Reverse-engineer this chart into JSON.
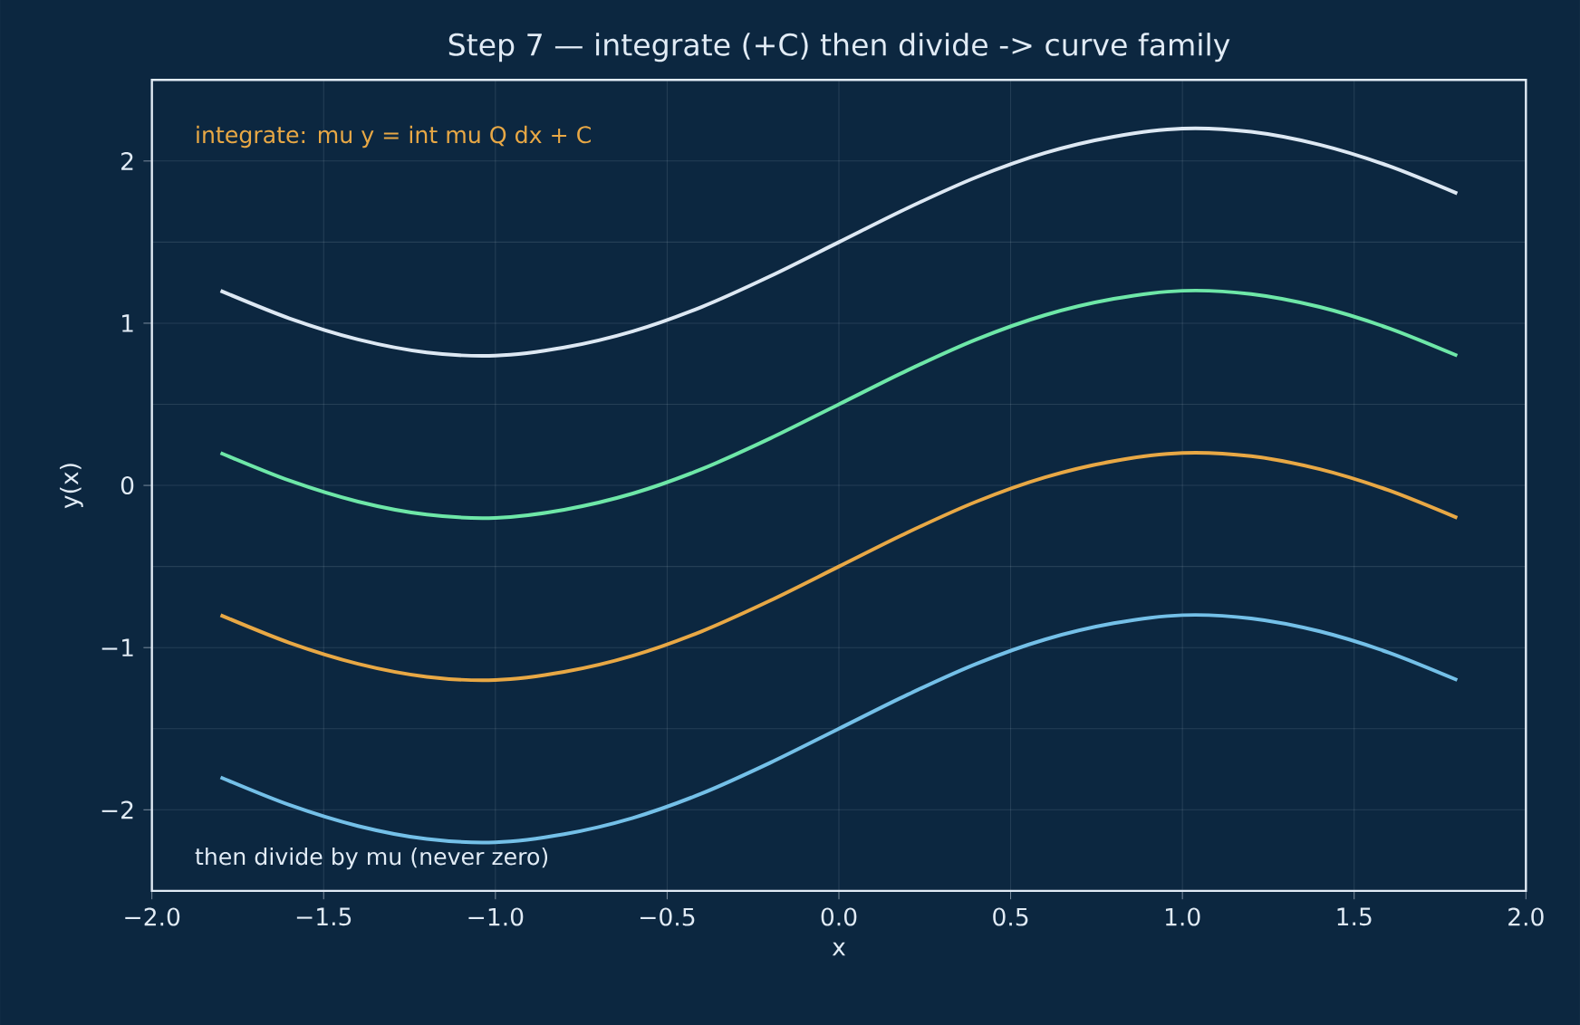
{
  "chart_data": {
    "type": "line",
    "title": "Step 7  —  integrate (+C) then divide -> curve family",
    "xlabel": "x",
    "ylabel": "y(x)",
    "x": [
      -1.8,
      -1.6,
      -1.4,
      -1.2,
      -1.0,
      -0.8,
      -0.6,
      -0.4,
      -0.2,
      0,
      0.2,
      0.4,
      0.6,
      0.8,
      1.0,
      1.2,
      1.4,
      1.6,
      1.8
    ],
    "series": [
      {
        "color": "#dde8f3",
        "values": [
          1.2,
          1.03,
          0.9,
          0.82,
          0.8,
          0.85,
          0.95,
          1.1,
          1.29,
          1.5,
          1.71,
          1.9,
          2.05,
          2.15,
          2.2,
          2.18,
          2.1,
          1.97,
          1.8
        ]
      },
      {
        "color": "#6ee7a8",
        "values": [
          0.2,
          0.03,
          -0.1,
          -0.18,
          -0.2,
          -0.15,
          -0.05,
          0.1,
          0.29,
          0.5,
          0.71,
          0.9,
          1.05,
          1.15,
          1.2,
          1.18,
          1.1,
          0.97,
          0.8
        ]
      },
      {
        "color": "#e8a845",
        "values": [
          -0.8,
          -0.97,
          -1.1,
          -1.18,
          -1.2,
          -1.15,
          -1.05,
          -0.9,
          -0.71,
          -0.5,
          -0.29,
          -0.1,
          0.05,
          0.15,
          0.2,
          0.18,
          0.1,
          -0.03,
          -0.2
        ]
      },
      {
        "color": "#74c0e8",
        "values": [
          -1.8,
          -1.97,
          -2.1,
          -2.18,
          -2.2,
          -2.15,
          -2.05,
          -1.9,
          -1.71,
          -1.5,
          -1.29,
          -1.1,
          -0.95,
          -0.85,
          -0.8,
          -0.82,
          -0.9,
          -1.03,
          -1.2
        ]
      }
    ],
    "xlim": [
      -2,
      2
    ],
    "ylim": [
      -2.5,
      2.5
    ],
    "xticks": [
      {
        "value": -2,
        "label": "−2.0"
      },
      {
        "value": -1.5,
        "label": "−1.5"
      },
      {
        "value": -1,
        "label": "−1.0"
      },
      {
        "value": -0.5,
        "label": "−0.5"
      },
      {
        "value": 0,
        "label": "0.0"
      },
      {
        "value": 0.5,
        "label": "0.5"
      },
      {
        "value": 1,
        "label": "1.0"
      },
      {
        "value": 1.5,
        "label": "1.5"
      },
      {
        "value": 2,
        "label": "2.0"
      }
    ],
    "yticks": [
      {
        "value": -2,
        "label": "−2"
      },
      {
        "value": -1,
        "label": "−1"
      },
      0,
      1,
      2
    ],
    "grid": true,
    "marker": "none",
    "line_style": "solid",
    "annotations": [
      "integrate: mu y = int mu Q dx + C",
      "then divide by mu (never zero)"
    ]
  }
}
